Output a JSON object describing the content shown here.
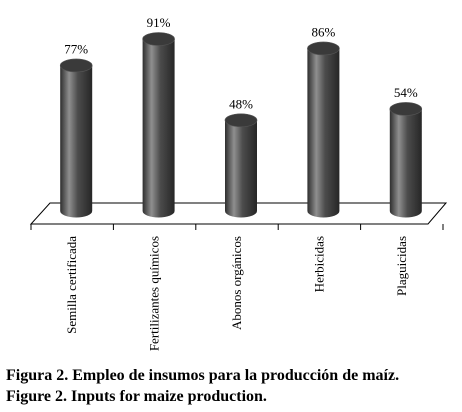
{
  "chart_data": {
    "type": "bar",
    "style": "3d-cylinder",
    "categories": [
      "Semilla certificada",
      "Fertilizantes químicos",
      "Abonos orgánicos",
      "Herbicidas",
      "Plaguicidas"
    ],
    "values": [
      77,
      91,
      48,
      86,
      54
    ],
    "value_labels": [
      "77%",
      "91%",
      "48%",
      "86%",
      "54%"
    ],
    "unit": "%",
    "ylim": [
      0,
      100
    ],
    "grid": false,
    "legend": "none",
    "colors": {
      "bar_body": "#4a4a4a",
      "bar_highlight": "#9a9a9a",
      "bar_top": "#3a3a3a"
    }
  },
  "caption": {
    "spanish": "Figura 2. Empleo de insumos para la producción de maíz.",
    "english": "Figure 2. Inputs for maize production."
  }
}
